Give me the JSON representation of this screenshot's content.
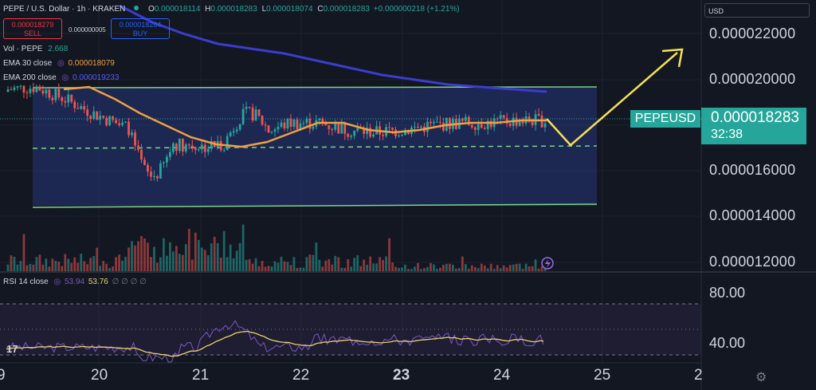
{
  "header": {
    "title": "PEPE / U.S. Dollar · 1h · KRAKEN",
    "ohlc": {
      "o_label": "O",
      "o": "0.000018114",
      "h_label": "H",
      "h": "0.000018283",
      "l_label": "L",
      "l": "0.000018074",
      "c_label": "C",
      "c": "0.000018283",
      "change": "+0.000000218 (+1.21%)"
    }
  },
  "trade": {
    "sell_price": "0.000018279",
    "sell_label": "SELL",
    "spread": "0.000000005",
    "buy_price": "0.000018284",
    "buy_label": "BUY"
  },
  "indicators": {
    "vol_name": "Vol · PEPE",
    "vol_value": "2.668",
    "ema30_name": "EMA 30 close",
    "ema30_value": "0.000018079",
    "ema200_name": "EMA 200 close",
    "ema200_value": "0.000019233",
    "rsi_name": "RSI 14 close",
    "rsi_value": "53.94",
    "rsi_ma": "53.76",
    "rsi_extra": "∅ ∅ ∅ ∅"
  },
  "currency_selector": {
    "value": "USD"
  },
  "price_axis": [
    "0.000022000",
    "0.000020000",
    "0.000016000",
    "0.000014000",
    "0.000012000"
  ],
  "last_price": {
    "ticker": "PEPEUSD",
    "price": "0.000018283",
    "countdown": "32:38"
  },
  "rsi_axis": [
    "80.00",
    "40.00"
  ],
  "time_axis": [
    "9",
    "20",
    "21",
    "22",
    "23",
    "24",
    "25",
    "2"
  ],
  "colors": {
    "up": "#26a69a",
    "down": "#ef5350",
    "ema30": "#f0a040",
    "ema200": "#3c3ccf",
    "channel": "#7bd389",
    "arrow": "#f5e050",
    "rsi": "#7e57c2",
    "rsi_ma": "#e8d170"
  },
  "icons": {
    "logo": "tradingview-logo-icon",
    "settings": "gear-icon",
    "alert": "lightning-icon"
  },
  "chart_data": {
    "type": "candlestick",
    "title": "PEPE / U.S. Dollar · 1h · KRAKEN",
    "xlabel": "",
    "ylabel": "",
    "x_ticks": [
      "9",
      "20",
      "21",
      "22",
      "23",
      "24",
      "25",
      "2"
    ],
    "ylim": [
      1.18e-05,
      2.28e-05
    ],
    "series": [
      {
        "name": "EMA 30 close",
        "last": 1.8079e-05,
        "values": [
          1.94e-05,
          1.95e-05,
          1.9e-05,
          1.84e-05,
          1.79e-05,
          1.74e-05,
          1.71e-05,
          1.7e-05,
          1.72e-05,
          1.76e-05,
          1.8e-05,
          1.8e-05,
          1.77e-05,
          1.76e-05,
          1.77e-05,
          1.79e-05,
          1.8e-05,
          1.8e-05,
          1.81e-05,
          1.81e-05
        ]
      },
      {
        "name": "EMA 200 close",
        "last": 1.9233e-05,
        "values": [
          2.29e-05,
          2.22e-05,
          2.17e-05,
          2.13e-05,
          2.11e-05,
          2.09e-05,
          2.06e-05,
          2.03e-05,
          2e-05,
          1.98e-05,
          1.96e-05,
          1.95e-05,
          1.94e-05,
          1.93e-05
        ]
      },
      {
        "name": "RSI 14 close",
        "last": 53.94
      }
    ],
    "rsi_ma_last": 53.76,
    "last_close": 1.8283e-05
  }
}
